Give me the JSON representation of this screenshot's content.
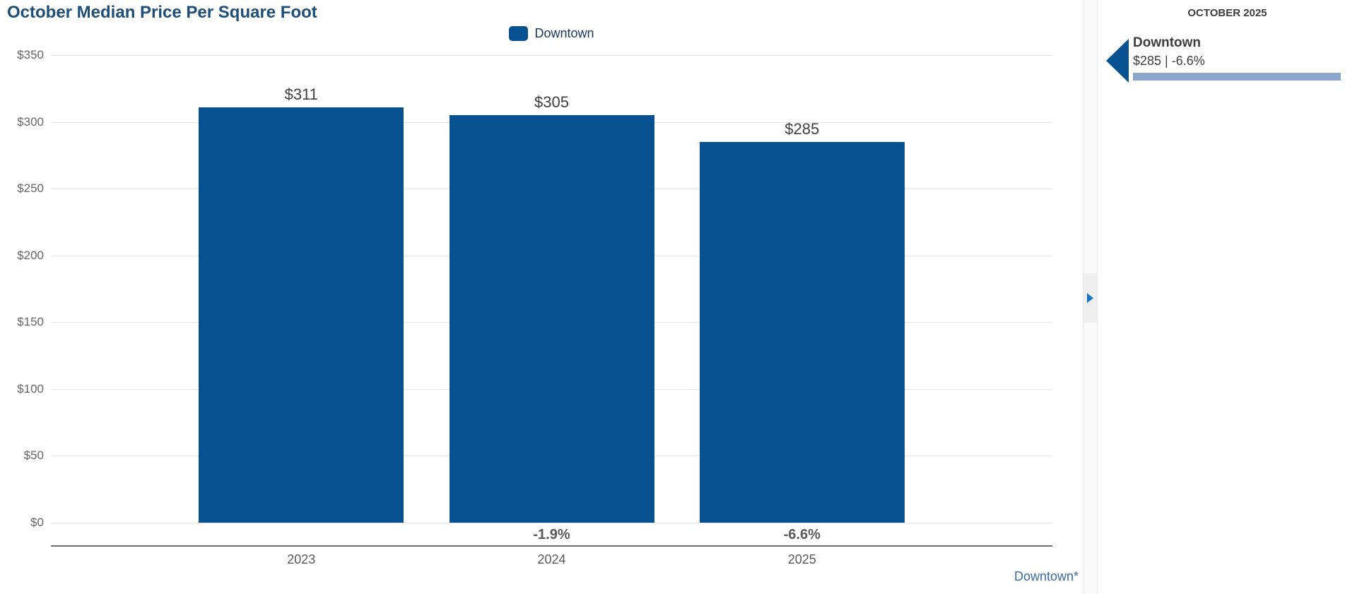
{
  "title": "October Median Price Per Square Foot",
  "legend": {
    "label": "Downtown"
  },
  "colors": {
    "bar": "#075190",
    "title": "#1F4E79",
    "sidebar_bar": "#8BA6CB",
    "sidebar_arrow": "#075190",
    "expand_arrow": "#1A73C8",
    "link": "#3A6CA4"
  },
  "chart_data": {
    "type": "bar",
    "title": "October Median Price Per Square Foot",
    "categories": [
      "2023",
      "2024",
      "2025"
    ],
    "series": [
      {
        "name": "Downtown",
        "values": [
          311,
          305,
          285
        ]
      }
    ],
    "value_labels": [
      "$311",
      "$305",
      "$285"
    ],
    "pct_change_labels": [
      "",
      "-1.9%",
      "-6.6%"
    ],
    "y_tick_values": [
      350,
      300,
      250,
      200,
      150,
      100,
      50,
      0
    ],
    "y_tick_labels": [
      "$350",
      "$300",
      "$250",
      "$200",
      "$150",
      "$100",
      "$50",
      "$0"
    ],
    "ylim": [
      0,
      350
    ],
    "xlabel": "",
    "ylabel": "",
    "grid": true,
    "legend_position": "top-center"
  },
  "sidebar": {
    "header": "OCTOBER 2025",
    "items": [
      {
        "name": "Downtown",
        "value_line": "$285 | -6.6%"
      }
    ]
  },
  "footer_link": "Downtown*",
  "divider": {
    "tooltip": "expand panel"
  }
}
